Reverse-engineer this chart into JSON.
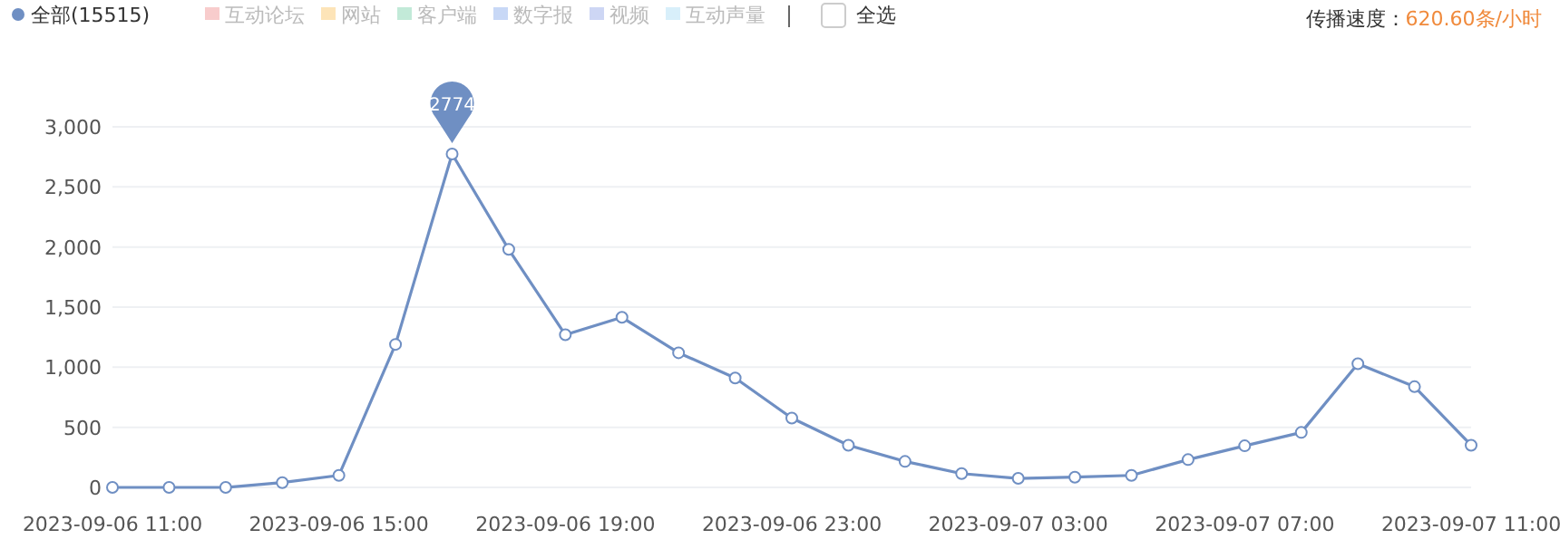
{
  "chart_data": {
    "type": "line",
    "categories": [
      "2023-09-06 11:00",
      null,
      null,
      null,
      "2023-09-06 15:00",
      null,
      null,
      null,
      "2023-09-06 19:00",
      null,
      null,
      null,
      "2023-09-06 23:00",
      null,
      null,
      null,
      "2023-09-07 03:00",
      null,
      null,
      null,
      "2023-09-07 07:00",
      null,
      null,
      null,
      "2023-09-07 11:00"
    ],
    "series": [
      {
        "name": "全部(15515)",
        "color": "#6f8fc3",
        "values": [
          0,
          0,
          0,
          40,
          100,
          1190,
          2774,
          1980,
          1270,
          1415,
          1120,
          910,
          577,
          351,
          216,
          115,
          75,
          85,
          100,
          231,
          346,
          457,
          1029,
          838,
          351
        ]
      },
      {
        "name": "互动论坛",
        "color": "#f8cccc",
        "values": [
          null,
          null,
          null,
          null,
          null,
          null,
          null,
          null,
          null,
          null,
          null,
          null,
          null,
          null,
          null,
          null,
          null,
          null,
          null,
          null,
          null,
          null,
          null,
          null,
          null
        ]
      },
      {
        "name": "网站",
        "color": "#fde4b8",
        "values": [
          null,
          null,
          null,
          null,
          null,
          null,
          null,
          null,
          null,
          null,
          null,
          null,
          null,
          null,
          null,
          null,
          null,
          null,
          null,
          null,
          null,
          null,
          null,
          null,
          null
        ]
      },
      {
        "name": "客户端",
        "color": "#c2ead8",
        "values": [
          null,
          null,
          null,
          null,
          null,
          null,
          null,
          null,
          null,
          null,
          null,
          null,
          null,
          null,
          null,
          null,
          null,
          null,
          null,
          null,
          null,
          null,
          null,
          null,
          null
        ]
      },
      {
        "name": "数字报",
        "color": "#c8d8f6",
        "values": [
          null,
          null,
          null,
          null,
          null,
          null,
          null,
          null,
          null,
          null,
          null,
          null,
          null,
          null,
          null,
          null,
          null,
          null,
          null,
          null,
          null,
          null,
          null,
          null,
          null
        ]
      },
      {
        "name": "视频",
        "color": "#cdd6f4",
        "values": [
          null,
          null,
          null,
          null,
          null,
          null,
          null,
          null,
          null,
          null,
          null,
          null,
          null,
          null,
          null,
          null,
          null,
          null,
          null,
          null,
          null,
          null,
          null,
          null,
          null
        ]
      },
      {
        "name": "互动声量",
        "color": "#d8effa",
        "values": [
          null,
          null,
          null,
          null,
          null,
          null,
          null,
          null,
          null,
          null,
          null,
          null,
          null,
          null,
          null,
          null,
          null,
          null,
          null,
          null,
          null,
          null,
          null,
          null,
          null
        ]
      }
    ],
    "ylim": [
      0,
      3000
    ],
    "yticks": [
      {
        "value": 0,
        "label": "0"
      },
      {
        "value": 500,
        "label": "500"
      },
      {
        "value": 1000,
        "label": "1,000"
      },
      {
        "value": 1500,
        "label": "1,500"
      },
      {
        "value": 2000,
        "label": "2,000"
      },
      {
        "value": 2500,
        "label": "2,500"
      },
      {
        "value": 3000,
        "label": "3,000"
      }
    ],
    "grid": "y",
    "legend": "top left",
    "marker": "circle",
    "line_style": "solid",
    "annotations": [
      "全选",
      "传播速度：",
      "620.60条/小时",
      {
        "text": "2774",
        "y": 2774
      }
    ]
  }
}
